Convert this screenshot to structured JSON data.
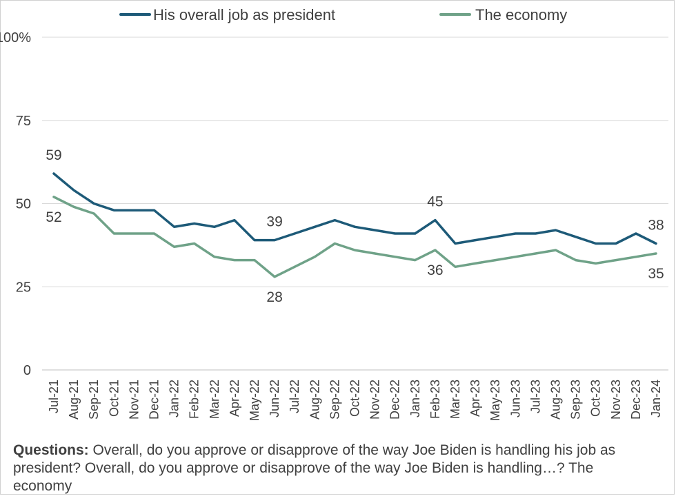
{
  "chart_data": {
    "type": "line",
    "categories": [
      "Jul-21",
      "Aug-21",
      "Sep-21",
      "Oct-21",
      "Nov-21",
      "Dec-21",
      "Jan-22",
      "Feb-22",
      "Mar-22",
      "Apr-22",
      "May-22",
      "Jun-22",
      "Jul-22",
      "Aug-22",
      "Sep-22",
      "Oct-22",
      "Nov-22",
      "Dec-22",
      "Jan-23",
      "Feb-23",
      "Mar-23",
      "Apr-23",
      "May-23",
      "Jun-23",
      "Jul-23",
      "Aug-23",
      "Sep-23",
      "Oct-23",
      "Nov-23",
      "Dec-23",
      "Jan-24"
    ],
    "series": [
      {
        "name": "His overall job as president",
        "color": "#1d5a78",
        "values": [
          59,
          54,
          50,
          48,
          48,
          48,
          43,
          44,
          43,
          45,
          39,
          39,
          41,
          43,
          45,
          43,
          42,
          41,
          41,
          45,
          38,
          39,
          40,
          41,
          41,
          42,
          40,
          38,
          38,
          41,
          38
        ],
        "labels": [
          {
            "index": 0,
            "text": "59",
            "pos": "above"
          },
          {
            "index": 11,
            "text": "39",
            "pos": "above"
          },
          {
            "index": 19,
            "text": "45",
            "pos": "above"
          },
          {
            "index": 30,
            "text": "38",
            "pos": "above"
          }
        ]
      },
      {
        "name": "The economy",
        "color": "#6fa288",
        "values": [
          52,
          49,
          47,
          41,
          41,
          41,
          37,
          38,
          34,
          33,
          33,
          28,
          31,
          34,
          38,
          36,
          35,
          34,
          33,
          36,
          31,
          32,
          33,
          34,
          35,
          36,
          33,
          32,
          33,
          34,
          35
        ],
        "labels": [
          {
            "index": 0,
            "text": "52",
            "pos": "below"
          },
          {
            "index": 11,
            "text": "28",
            "pos": "below"
          },
          {
            "index": 19,
            "text": "36",
            "pos": "below"
          },
          {
            "index": 30,
            "text": "35",
            "pos": "below"
          }
        ]
      }
    ],
    "yticks": [
      "0",
      "25",
      "50",
      "75",
      "100%"
    ],
    "ylim": [
      0,
      100
    ],
    "grid": true,
    "legend": "top"
  },
  "footnote": {
    "bold": "Questions:",
    "text": " Overall, do you approve or disapprove of the way Joe Biden is handling his job as president? Overall, do you approve or disapprove of the way Joe Biden is handling…? The economy"
  }
}
